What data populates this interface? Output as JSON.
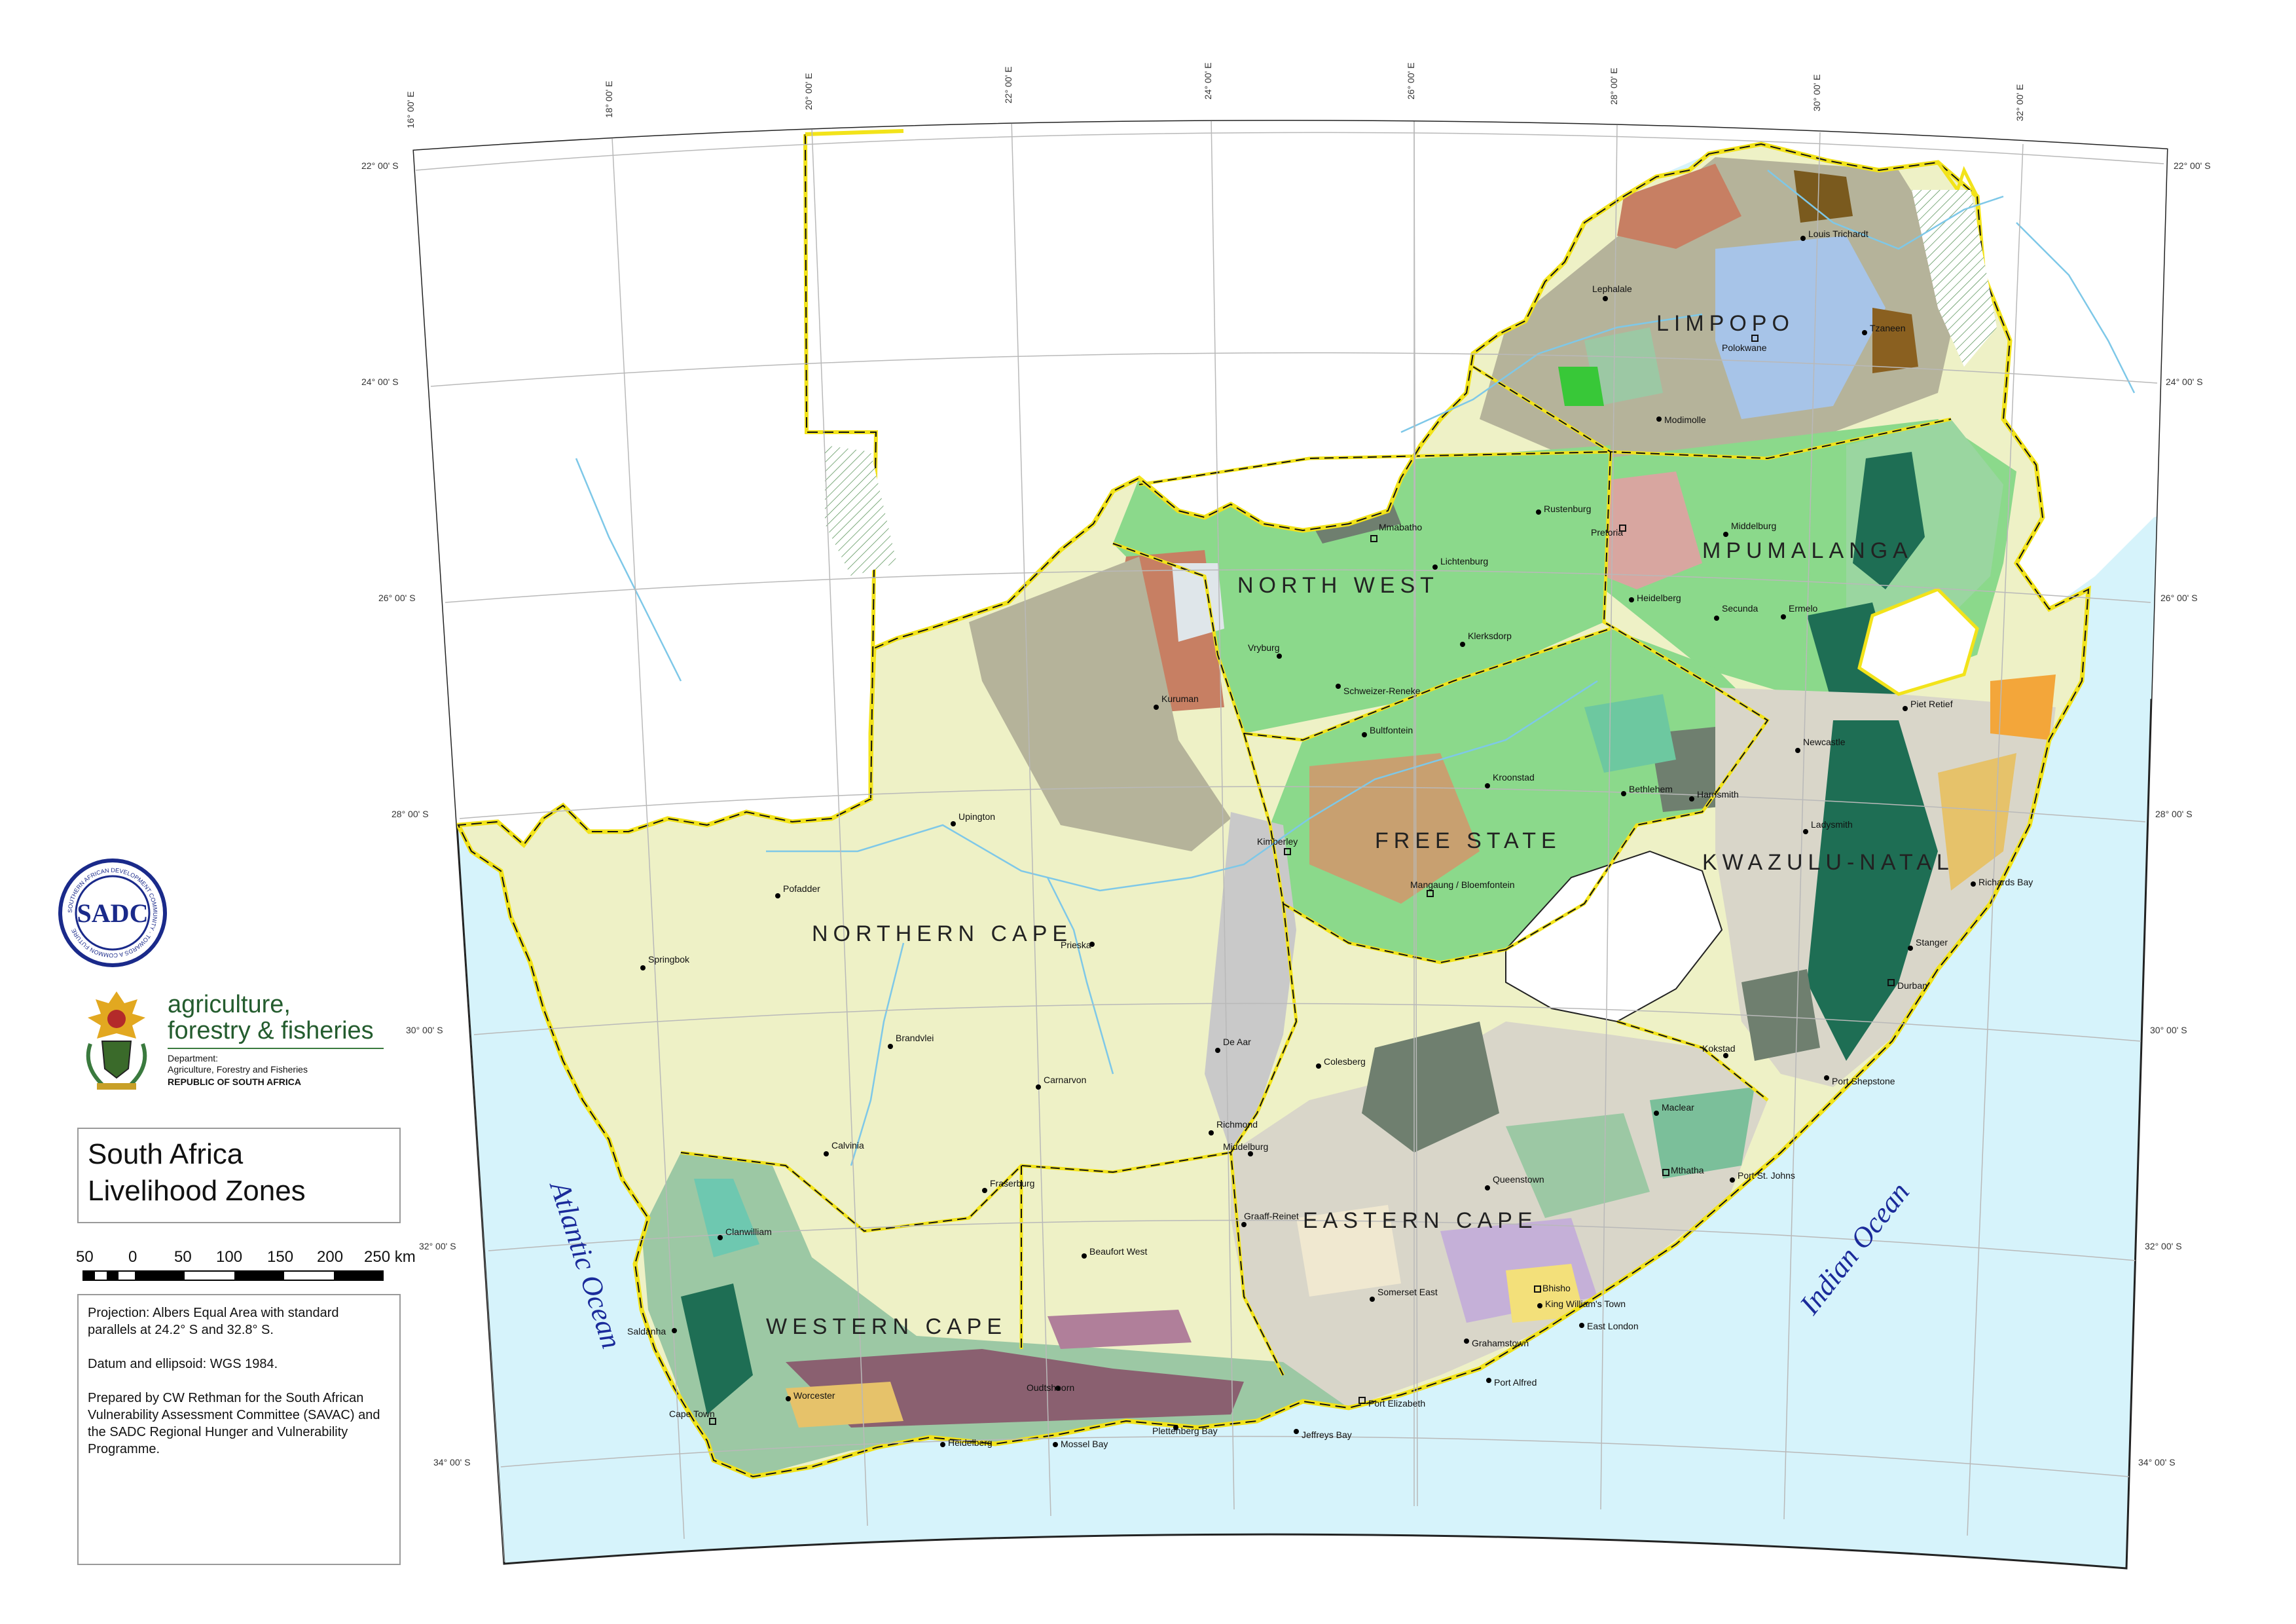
{
  "map": {
    "title_line1": "South Africa",
    "title_line2": "Livelihood Zones",
    "colors": {
      "ocean": "#d6f3fb",
      "land_outside": "#ffffff",
      "northern_cape_base": "#eef1c6",
      "province_border": "#f2e31a",
      "grid": "#b9b9b9",
      "ocean_text": "#1a2a9a",
      "zone_colors": [
        "#8bd98b",
        "#b5b39a",
        "#6f7f6f",
        "#1e6e54",
        "#c77f63",
        "#e6c26a",
        "#f3e07a",
        "#a7c4e8",
        "#d9d6c9",
        "#f0e8d0",
        "#9cc8a4",
        "#c8a6d6"
      ]
    },
    "provinces": [
      {
        "name": "LIMPOPO"
      },
      {
        "name": "MPUMALANGA"
      },
      {
        "name": "NORTH WEST"
      },
      {
        "name": "FREE STATE"
      },
      {
        "name": "KWAZULU-NATAL"
      },
      {
        "name": "NORTHERN CAPE"
      },
      {
        "name": "EASTERN CAPE"
      },
      {
        "name": "WESTERN CAPE"
      }
    ],
    "oceans": [
      {
        "name": "Atlantic Ocean"
      },
      {
        "name": "Indian Ocean"
      }
    ],
    "towns": [
      {
        "name": "Louis Trichardt"
      },
      {
        "name": "Lephalale"
      },
      {
        "name": "Polokwane"
      },
      {
        "name": "Tzaneen"
      },
      {
        "name": "Modimolle"
      },
      {
        "name": "Mmabatho"
      },
      {
        "name": "Lichtenburg"
      },
      {
        "name": "Rustenburg"
      },
      {
        "name": "Pretoria"
      },
      {
        "name": "Middelburg"
      },
      {
        "name": "Heidelberg"
      },
      {
        "name": "Secunda"
      },
      {
        "name": "Ermelo"
      },
      {
        "name": "Klerksdorp"
      },
      {
        "name": "Vryburg"
      },
      {
        "name": "Schweizer-Reneke"
      },
      {
        "name": "Kuruman"
      },
      {
        "name": "Bultfontein"
      },
      {
        "name": "Kroonstad"
      },
      {
        "name": "Bethlehem"
      },
      {
        "name": "Harrismith"
      },
      {
        "name": "Piet Retief"
      },
      {
        "name": "Newcastle"
      },
      {
        "name": "Ladysmith"
      },
      {
        "name": "Richards Bay"
      },
      {
        "name": "Stanger"
      },
      {
        "name": "Durban"
      },
      {
        "name": "Port Shepstone"
      },
      {
        "name": "Kokstad"
      },
      {
        "name": "Upington"
      },
      {
        "name": "Kimberley"
      },
      {
        "name": "Mangaung / Bloemfontein"
      },
      {
        "name": "Pofadder"
      },
      {
        "name": "Springbok"
      },
      {
        "name": "Prieska"
      },
      {
        "name": "Brandvlei"
      },
      {
        "name": "De Aar"
      },
      {
        "name": "Colesberg"
      },
      {
        "name": "Carnarvon"
      },
      {
        "name": "Richmond"
      },
      {
        "name": "Calvinia"
      },
      {
        "name": "Fraserburg"
      },
      {
        "name": "Middelburg"
      },
      {
        "name": "Maclear"
      },
      {
        "name": "Mthatha"
      },
      {
        "name": "Port St. Johns"
      },
      {
        "name": "Graaff-Reinet"
      },
      {
        "name": "Queenstown"
      },
      {
        "name": "Clanwilliam"
      },
      {
        "name": "Beaufort West"
      },
      {
        "name": "Somerset East"
      },
      {
        "name": "Bhisho"
      },
      {
        "name": "King William's Town"
      },
      {
        "name": "East London"
      },
      {
        "name": "Grahamstown"
      },
      {
        "name": "Port Alfred"
      },
      {
        "name": "Saldanha"
      },
      {
        "name": "Worcester"
      },
      {
        "name": "Oudtshoorn"
      },
      {
        "name": "Cape Town"
      },
      {
        "name": "Heidelberg"
      },
      {
        "name": "Mossel Bay"
      },
      {
        "name": "Plettenberg Bay"
      },
      {
        "name": "Jeffreys Bay"
      },
      {
        "name": "Port Elizabeth"
      }
    ],
    "lon_labels": [
      "16° 00' E",
      "18° 00' E",
      "20° 00' E",
      "22° 00' E",
      "24° 00' E",
      "26° 00' E",
      "28° 00' E",
      "30° 00' E",
      "32° 00' E"
    ],
    "lat_labels": [
      "22° 00' S",
      "24° 00' S",
      "26° 00' S",
      "28° 00' S",
      "30° 00' S",
      "32° 00' S",
      "34° 00' S"
    ]
  },
  "scale": {
    "labels": [
      "50",
      "0",
      "50",
      "100",
      "150",
      "200",
      "250 km"
    ]
  },
  "notes": {
    "projection": "Projection: Albers Equal Area with standard parallels at 24.2° S and 32.8° S.",
    "datum": "Datum and ellipsoid: WGS 1984.",
    "credits": "Prepared by CW Rethman for the South African Vulnerability Assessment Committee (SAVAC) and the SADC Regional Hunger and Vulnerability Programme."
  },
  "logos": {
    "daff_name_line1": "agriculture,",
    "daff_name_line2": "forestry & fisheries",
    "daff_dept_line1": "Department:",
    "daff_dept_line2": "Agriculture, Forestry and Fisheries",
    "daff_country": "REPUBLIC OF SOUTH AFRICA",
    "sadc_text": "SADC",
    "sadc_ring": "SOUTHERN AFRICAN DEVELOPMENT COMMUNITY · TOWARDS A COMMON FUTURE"
  }
}
